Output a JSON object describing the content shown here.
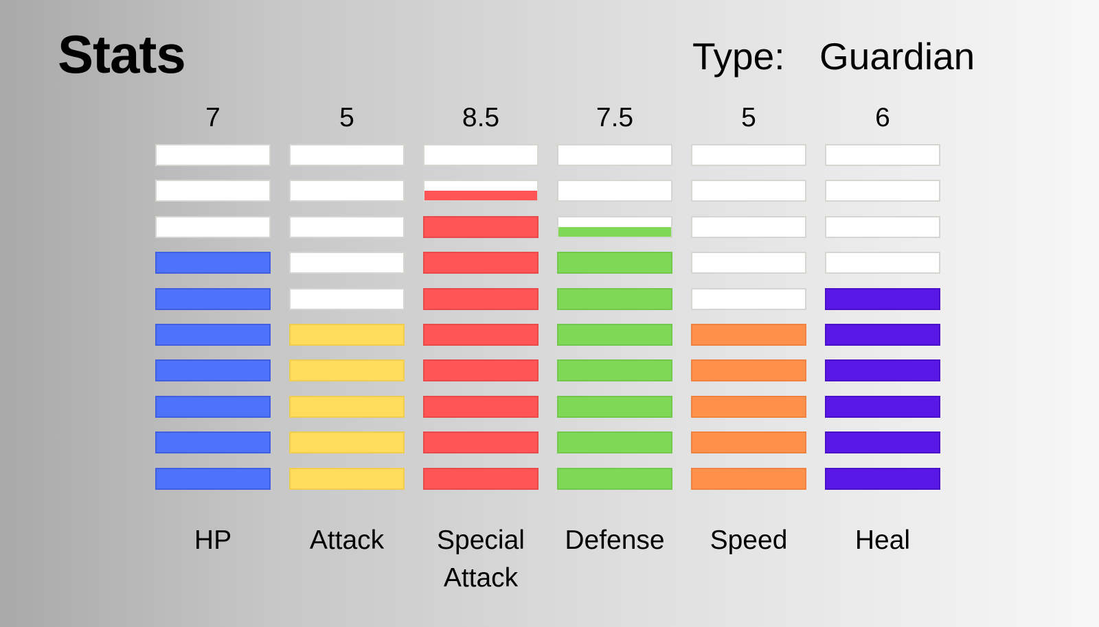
{
  "title": "Stats",
  "type_label": "Type:",
  "type_value": "Guardian",
  "chart_data": {
    "type": "bar",
    "segments_per_bar": 10,
    "categories": [
      "HP",
      "Attack",
      "Special Attack",
      "Defense",
      "Speed",
      "Heal"
    ],
    "category_lines": [
      [
        "HP"
      ],
      [
        "Attack"
      ],
      [
        "Special",
        "Attack"
      ],
      [
        "Defense"
      ],
      [
        "Speed"
      ],
      [
        "Heal"
      ]
    ],
    "value_labels": [
      "7",
      "5",
      "8.5",
      "7.5",
      "5",
      "6"
    ],
    "values": [
      7,
      5,
      8.5,
      7.5,
      5,
      6
    ],
    "colors": [
      "#4f72fb",
      "#ffdd5c",
      "#ff5557",
      "#7fd957",
      "#ff914d",
      "#5b17e6"
    ],
    "border_colors": [
      "#3f5fe0",
      "#f0cc50",
      "#e84a4c",
      "#70c84c",
      "#f0823f",
      "#4a10c8"
    ],
    "empty_color": "#ffffff"
  }
}
